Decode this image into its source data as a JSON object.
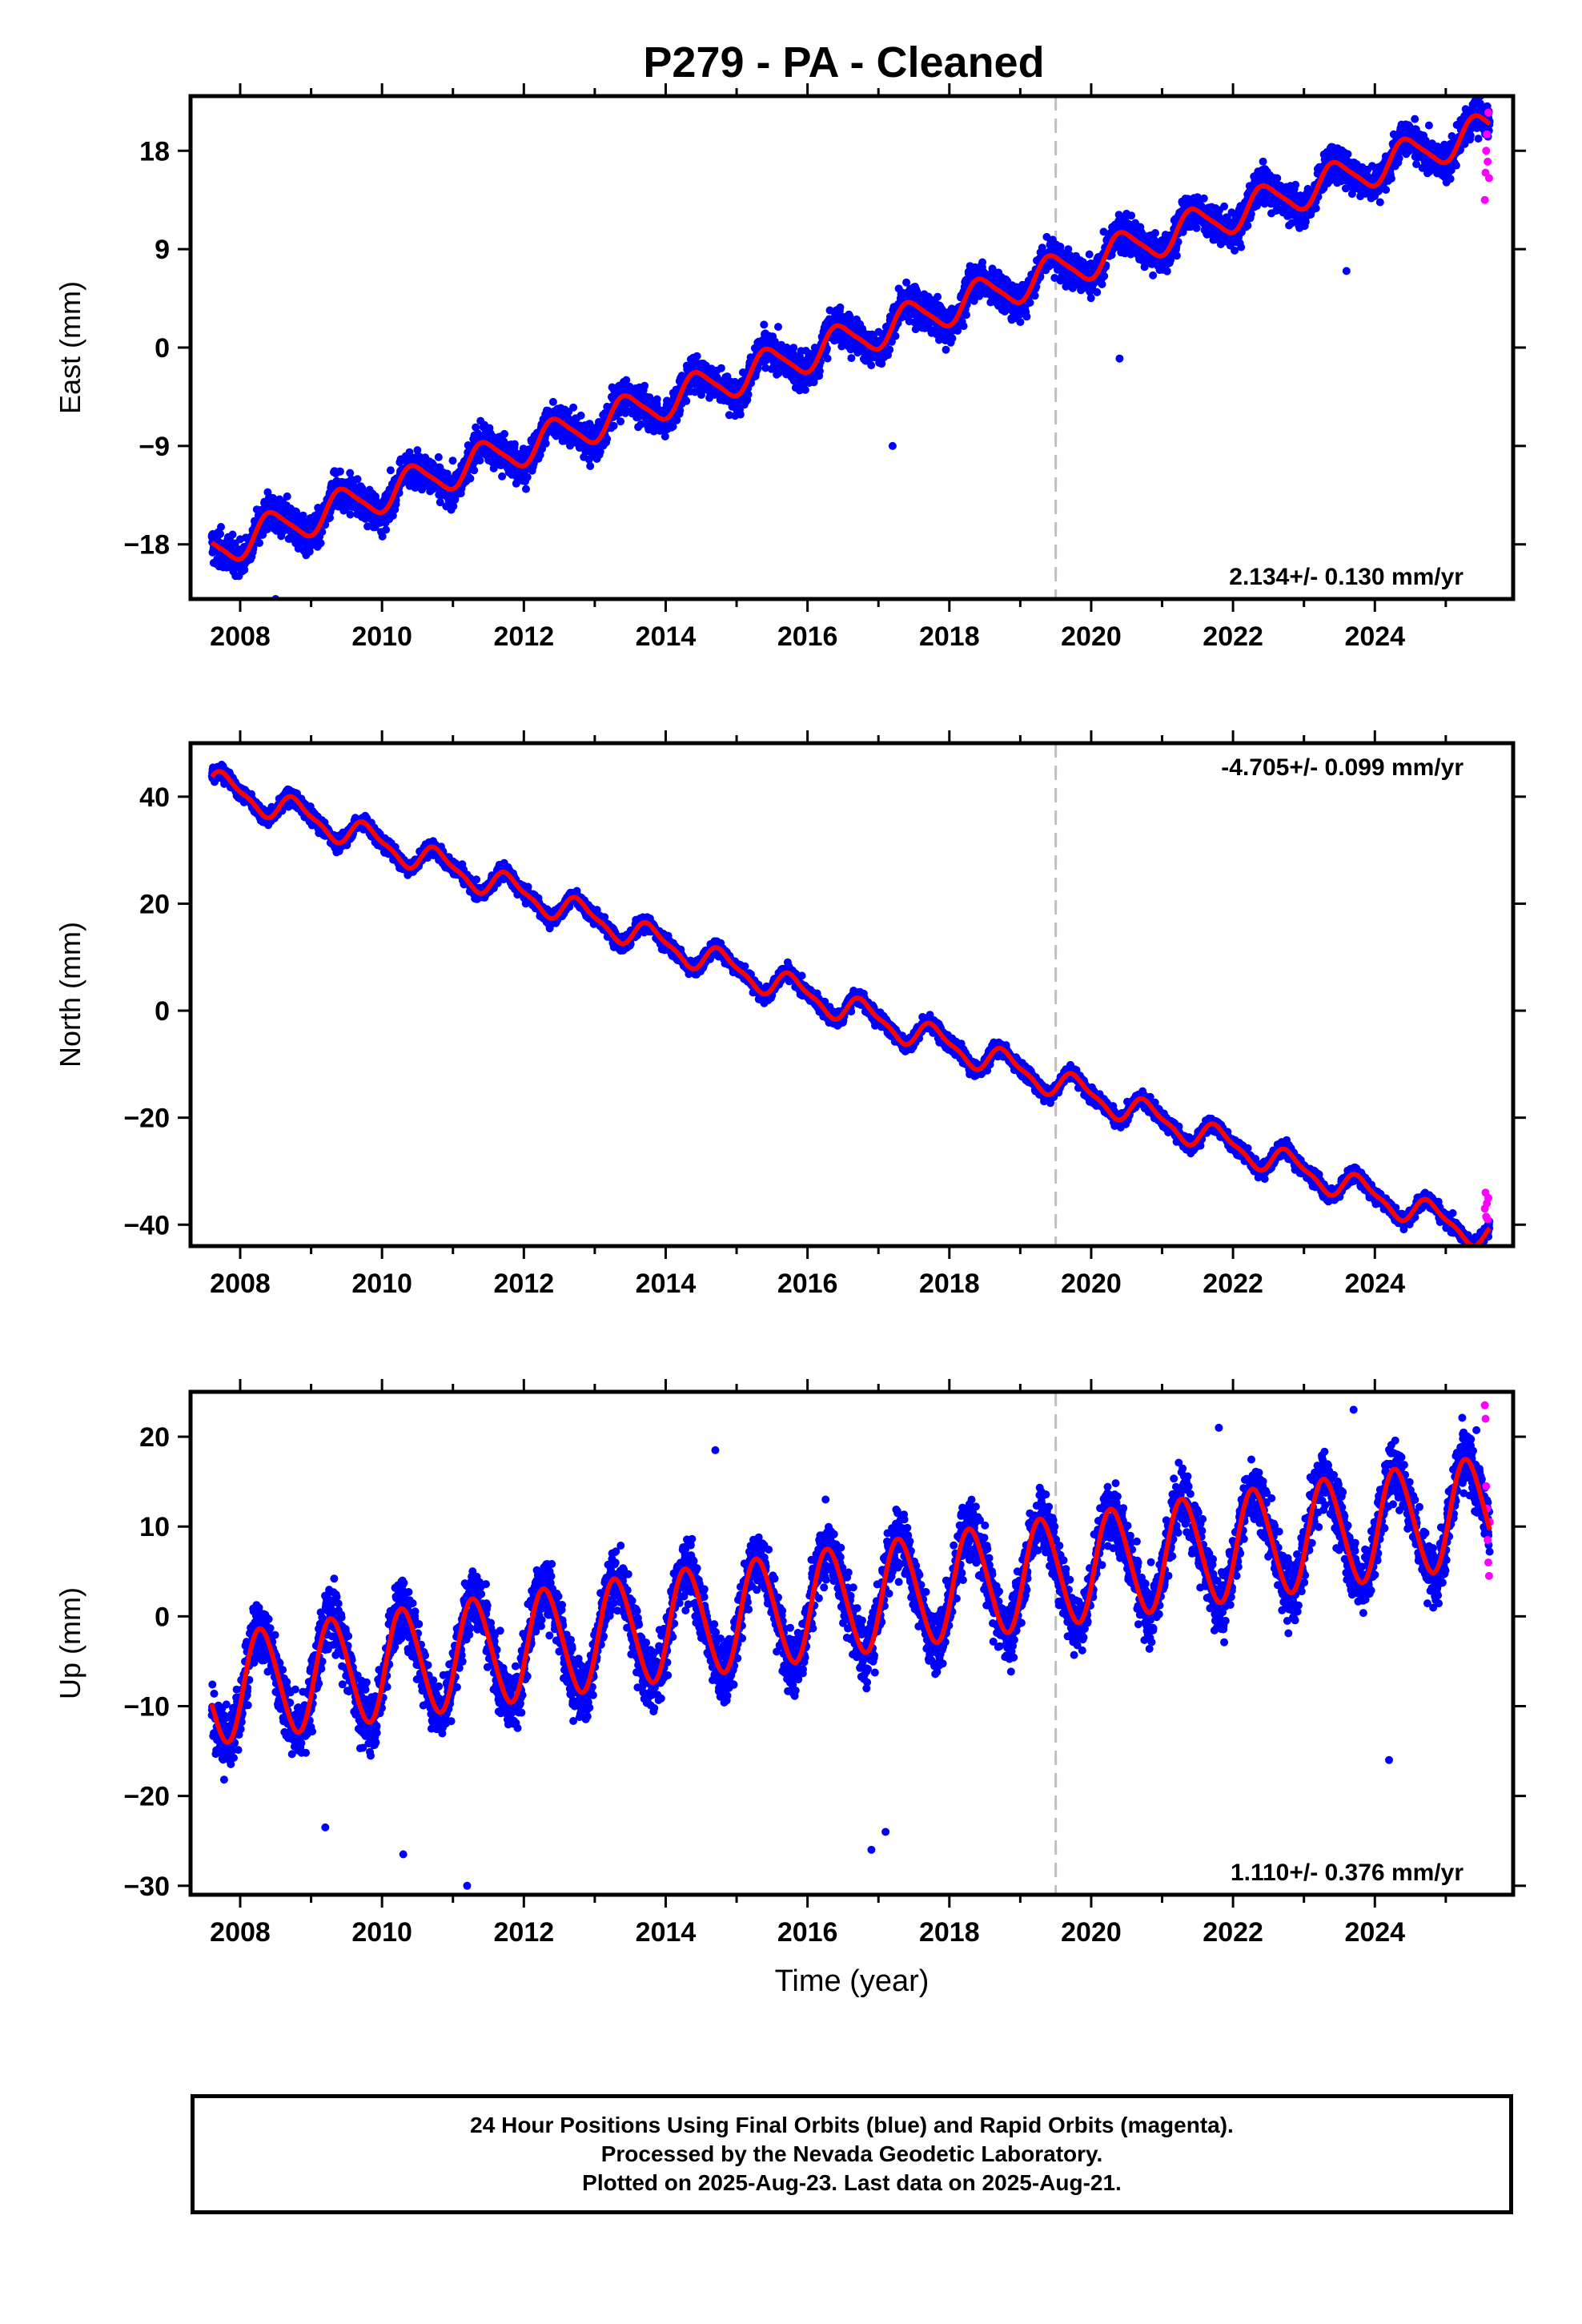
{
  "title": "P279  - PA - Cleaned",
  "footer": {
    "lines": [
      "24 Hour Positions Using Final Orbits (blue) and Rapid Orbits (magenta).",
      "Processed by the Nevada Geodetic Laboratory.",
      "Plotted on 2025-Aug-23. Last data on 2025-Aug-21."
    ]
  },
  "colors": {
    "final": "#0000ff",
    "rapid": "#ff00ff",
    "model": "#ff0000",
    "event_line": "#c0c0c0"
  },
  "chart_data": [
    {
      "type": "scatter",
      "component": "east",
      "ylabel": "East (mm)",
      "xlabel": "",
      "xlim": [
        2007.3,
        2025.95
      ],
      "ylim": [
        -23,
        23
      ],
      "xticks": [
        2008,
        2010,
        2012,
        2014,
        2016,
        2018,
        2020,
        2022,
        2024
      ],
      "yticks": [
        -18,
        -9,
        0,
        9,
        18
      ],
      "rate_label": "2.134+/- 0.130 mm/yr",
      "rate_position": "bottom-right",
      "event_line_x": 2019.5,
      "model": {
        "start": 2007.6,
        "end": 2025.62,
        "offset": -18.5,
        "rate": 2.134,
        "amp": 1.6,
        "phase": 0.2,
        "amp2": 0.3,
        "noise": 1.4,
        "outliers": [
          [
            2017.2,
            -9.0
          ],
          [
            2020.4,
            -1.0
          ],
          [
            2023.6,
            7.0
          ],
          [
            2008.5,
            -23.0
          ]
        ]
      },
      "rapid": [
        [
          2025.55,
          13.5
        ],
        [
          2025.56,
          16.0
        ],
        [
          2025.57,
          18.0
        ],
        [
          2025.58,
          19.5
        ],
        [
          2025.59,
          17.0
        ],
        [
          2025.6,
          21.5
        ],
        [
          2025.61,
          15.5
        ]
      ]
    },
    {
      "type": "scatter",
      "component": "north",
      "ylabel": "North (mm)",
      "xlabel": "",
      "xlim": [
        2007.3,
        2025.95
      ],
      "ylim": [
        -44,
        50
      ],
      "xticks": [
        2008,
        2010,
        2012,
        2014,
        2016,
        2018,
        2020,
        2022,
        2024
      ],
      "yticks": [
        -40,
        -20,
        0,
        20,
        40
      ],
      "rate_label": "-4.705+/- 0.099 mm/yr",
      "rate_position": "top-right",
      "event_line_x": 2019.5,
      "model": {
        "start": 2007.6,
        "end": 2025.62,
        "offset": 42.5,
        "rate": -4.705,
        "amp": 2.4,
        "phase": 0.55,
        "amp2": 0.8,
        "noise": 1.2,
        "outliers": []
      },
      "rapid": [
        [
          2025.55,
          -37.0
        ],
        [
          2025.56,
          -34.0
        ],
        [
          2025.57,
          -38.5
        ],
        [
          2025.58,
          -36.0
        ],
        [
          2025.59,
          -39.0
        ],
        [
          2025.6,
          -35.0
        ]
      ]
    },
    {
      "type": "scatter",
      "component": "up",
      "ylabel": "Up (mm)",
      "xlabel": "Time (year)",
      "xlim": [
        2007.3,
        2025.95
      ],
      "ylim": [
        -31,
        25
      ],
      "xticks": [
        2008,
        2010,
        2012,
        2014,
        2016,
        2018,
        2020,
        2022,
        2024
      ],
      "yticks": [
        -30,
        -20,
        -10,
        0,
        10,
        20
      ],
      "rate_label": "1.110+/- 0.376 mm/yr",
      "rate_position": "bottom-right",
      "event_line_x": 2019.5,
      "model": {
        "start": 2007.6,
        "end": 2025.62,
        "offset": -8.2,
        "rate": 1.11,
        "amp": 6.0,
        "phase": 0.05,
        "amp2": 0.5,
        "noise": 3.0,
        "outliers": [
          [
            2010.3,
            -26.5
          ],
          [
            2011.2,
            -30.0
          ],
          [
            2009.2,
            -23.5
          ],
          [
            2016.9,
            -26.0
          ],
          [
            2014.7,
            18.5
          ],
          [
            2023.7,
            23.0
          ],
          [
            2017.1,
            -24.0
          ],
          [
            2021.8,
            21.0
          ],
          [
            2024.2,
            -16.0
          ]
        ]
      },
      "rapid": [
        [
          2025.55,
          23.5
        ],
        [
          2025.56,
          22.0
        ],
        [
          2025.57,
          14.5
        ],
        [
          2025.58,
          12.0
        ],
        [
          2025.59,
          8.5
        ],
        [
          2025.6,
          6.0
        ],
        [
          2025.61,
          4.5
        ],
        [
          2025.62,
          10.5
        ]
      ]
    }
  ]
}
